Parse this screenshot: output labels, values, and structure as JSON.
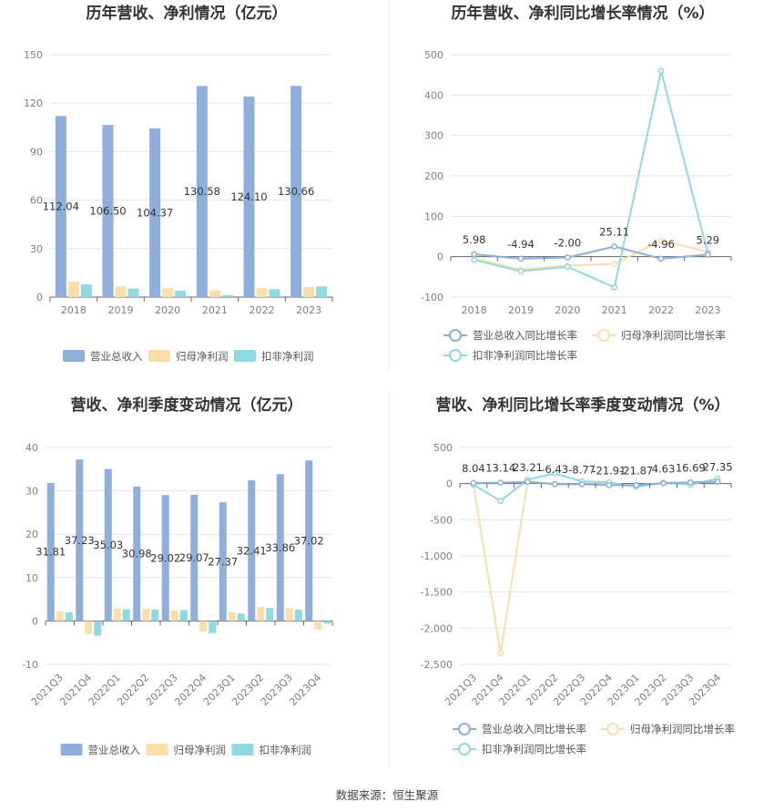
{
  "source": "数据来源：恒生聚源",
  "colors": {
    "revenue": "#8eaedb",
    "netprofit": "#fbdfa8",
    "deducted": "#8fd9e0",
    "grid": "#e6e6e6",
    "axis": "#999999"
  },
  "chart_data": [
    {
      "id": "c1",
      "type": "bar",
      "title": "历年营收、净利情况（亿元）",
      "categories": [
        "2018",
        "2019",
        "2020",
        "2021",
        "2022",
        "2023"
      ],
      "ylim": [
        0,
        150
      ],
      "yticks": [
        0,
        30,
        60,
        90,
        120,
        150
      ],
      "series": [
        {
          "name": "营业总收入",
          "values": [
            112.04,
            106.5,
            104.37,
            130.58,
            124.1,
            130.66
          ],
          "labels": [
            "112.04",
            "106.50",
            "104.37",
            "130.58",
            "124.10",
            "130.66"
          ]
        },
        {
          "name": "归母净利润",
          "values": [
            9.6,
            6.6,
            5.5,
            4.2,
            5.6,
            6.2
          ]
        },
        {
          "name": "扣非净利润",
          "values": [
            7.8,
            5.3,
            4.0,
            1.2,
            4.9,
            6.6
          ]
        }
      ],
      "legend": "bottom"
    },
    {
      "id": "c2",
      "type": "line",
      "title": "历年营收、净利同比增长率情况（%）",
      "categories": [
        "2018",
        "2019",
        "2020",
        "2021",
        "2022",
        "2023"
      ],
      "ylim": [
        -100,
        500
      ],
      "yticks": [
        -100,
        0,
        100,
        200,
        300,
        400,
        500
      ],
      "series": [
        {
          "name": "营业总收入同比增长率",
          "values": [
            5.98,
            -4.94,
            -2.0,
            25.11,
            -4.96,
            5.29
          ],
          "labels": [
            "5.98",
            "-4.94",
            "-2.00",
            "25.11",
            "-4.96",
            "5.29"
          ]
        },
        {
          "name": "归母净利润同比增长率",
          "values": [
            -5,
            -32,
            -22,
            -18,
            40,
            12
          ]
        },
        {
          "name": "扣非净利润同比增长率",
          "values": [
            -8,
            -36,
            -25,
            -76,
            460,
            8
          ]
        }
      ],
      "legend": "bottom"
    },
    {
      "id": "c3",
      "type": "bar",
      "title": "营收、净利季度变动情况（亿元）",
      "categories": [
        "2021Q3",
        "2021Q4",
        "2022Q1",
        "2022Q2",
        "2022Q3",
        "2022Q4",
        "2023Q1",
        "2023Q2",
        "2023Q3",
        "2023Q4"
      ],
      "ylim": [
        -10,
        40
      ],
      "yticks": [
        -10,
        0,
        10,
        20,
        30,
        40
      ],
      "series": [
        {
          "name": "营业总收入",
          "values": [
            31.81,
            37.23,
            35.03,
            30.98,
            29.02,
            29.07,
            27.37,
            32.41,
            33.86,
            37.02
          ],
          "labels": [
            "31.81",
            "37.23",
            "35.03",
            "30.98",
            "29.02",
            "29.07",
            "27.37",
            "32.41",
            "33.86",
            "37.02"
          ]
        },
        {
          "name": "归母净利润",
          "values": [
            2.2,
            -3.0,
            2.9,
            2.8,
            2.4,
            -2.4,
            2.0,
            3.2,
            2.9,
            -2.0
          ]
        },
        {
          "name": "扣非净利润",
          "values": [
            2.0,
            -3.4,
            2.7,
            2.6,
            2.5,
            -2.8,
            1.7,
            3.0,
            2.6,
            -0.6
          ]
        }
      ],
      "legend": "bottom"
    },
    {
      "id": "c4",
      "type": "line",
      "title": "营收、净利同比增长率季度变动情况（%）",
      "categories": [
        "2021Q3",
        "2021Q4",
        "2022Q1",
        "2022Q2",
        "2022Q3",
        "2022Q4",
        "2023Q1",
        "2023Q2",
        "2023Q3",
        "2023Q4"
      ],
      "ylim": [
        -2500,
        500
      ],
      "yticks": [
        -2500,
        -2000,
        -1500,
        -1000,
        -500,
        0,
        500
      ],
      "series": [
        {
          "name": "营业总收入同比增长率",
          "values": [
            8.04,
            13.14,
            23.21,
            -6.43,
            -8.77,
            -21.91,
            -21.87,
            4.63,
            16.69,
            27.35
          ],
          "labels": [
            "8.04",
            "13.14",
            "23.21",
            "-6.43",
            "-8.77",
            "-21.91",
            "-21.87",
            "4.63",
            "16.69",
            "27.35"
          ]
        },
        {
          "name": "归母净利润同比增长率",
          "values": [
            -10,
            -2350,
            40,
            -15,
            -10,
            -8,
            -35,
            15,
            20,
            25
          ]
        },
        {
          "name": "扣非净利润同比增长率",
          "values": [
            -15,
            -240,
            55,
            140,
            30,
            20,
            -45,
            10,
            -15,
            70
          ]
        }
      ],
      "legend": "bottom"
    }
  ]
}
